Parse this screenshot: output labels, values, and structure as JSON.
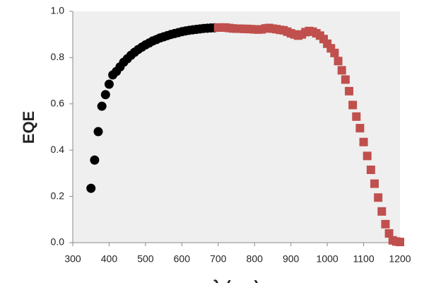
{
  "chart_data": {
    "type": "scatter",
    "xlabel": "λ (nm)",
    "ylabel": "EQE",
    "xlim": [
      300,
      1200
    ],
    "xticks": [
      300,
      400,
      500,
      600,
      700,
      800,
      900,
      1000,
      1100,
      1200
    ],
    "ylim": [
      0,
      1
    ],
    "yticks": [
      {
        "value": 0,
        "label": "0.0"
      },
      0.2,
      0.4,
      0.6,
      0.8,
      {
        "value": 1,
        "label": "1.0"
      }
    ],
    "background": "#efefef",
    "series": [
      {
        "color": "#000000",
        "marker": "circle",
        "x": [
          350,
          360,
          370,
          380,
          390,
          400,
          410,
          420,
          430,
          440,
          450,
          460,
          470,
          480,
          490,
          500,
          510,
          520,
          530,
          540,
          550,
          560,
          570,
          580,
          590,
          600,
          610,
          620,
          630,
          640,
          650,
          660,
          670,
          680,
          690
        ],
        "values": [
          0.235,
          0.357,
          0.48,
          0.59,
          0.64,
          0.685,
          0.725,
          0.74,
          0.76,
          0.78,
          0.795,
          0.81,
          0.823,
          0.835,
          0.845,
          0.855,
          0.863,
          0.872,
          0.878,
          0.885,
          0.89,
          0.895,
          0.9,
          0.904,
          0.908,
          0.912,
          0.915,
          0.918,
          0.92,
          0.922,
          0.924,
          0.926,
          0.927,
          0.928,
          0.929
        ]
      },
      {
        "color": "#c0504d",
        "marker": "square",
        "x": [
          700,
          710,
          720,
          730,
          740,
          750,
          760,
          770,
          780,
          790,
          800,
          810,
          820,
          830,
          840,
          850,
          860,
          870,
          880,
          890,
          900,
          910,
          920,
          930,
          940,
          950,
          960,
          970,
          980,
          990,
          1000,
          1010,
          1020,
          1030,
          1040,
          1050,
          1060,
          1070,
          1080,
          1090,
          1100,
          1110,
          1120,
          1130,
          1140,
          1150,
          1160,
          1170,
          1180,
          1190,
          1200
        ],
        "values": [
          0.93,
          0.93,
          0.93,
          0.928,
          0.926,
          0.925,
          0.925,
          0.924,
          0.924,
          0.923,
          0.922,
          0.921,
          0.922,
          0.926,
          0.928,
          0.925,
          0.923,
          0.92,
          0.918,
          0.912,
          0.905,
          0.9,
          0.895,
          0.9,
          0.91,
          0.915,
          0.912,
          0.905,
          0.895,
          0.88,
          0.86,
          0.84,
          0.82,
          0.785,
          0.745,
          0.705,
          0.655,
          0.595,
          0.545,
          0.495,
          0.435,
          0.375,
          0.315,
          0.255,
          0.195,
          0.135,
          0.08,
          0.04,
          0.01,
          0.005,
          0.003
        ]
      }
    ]
  }
}
